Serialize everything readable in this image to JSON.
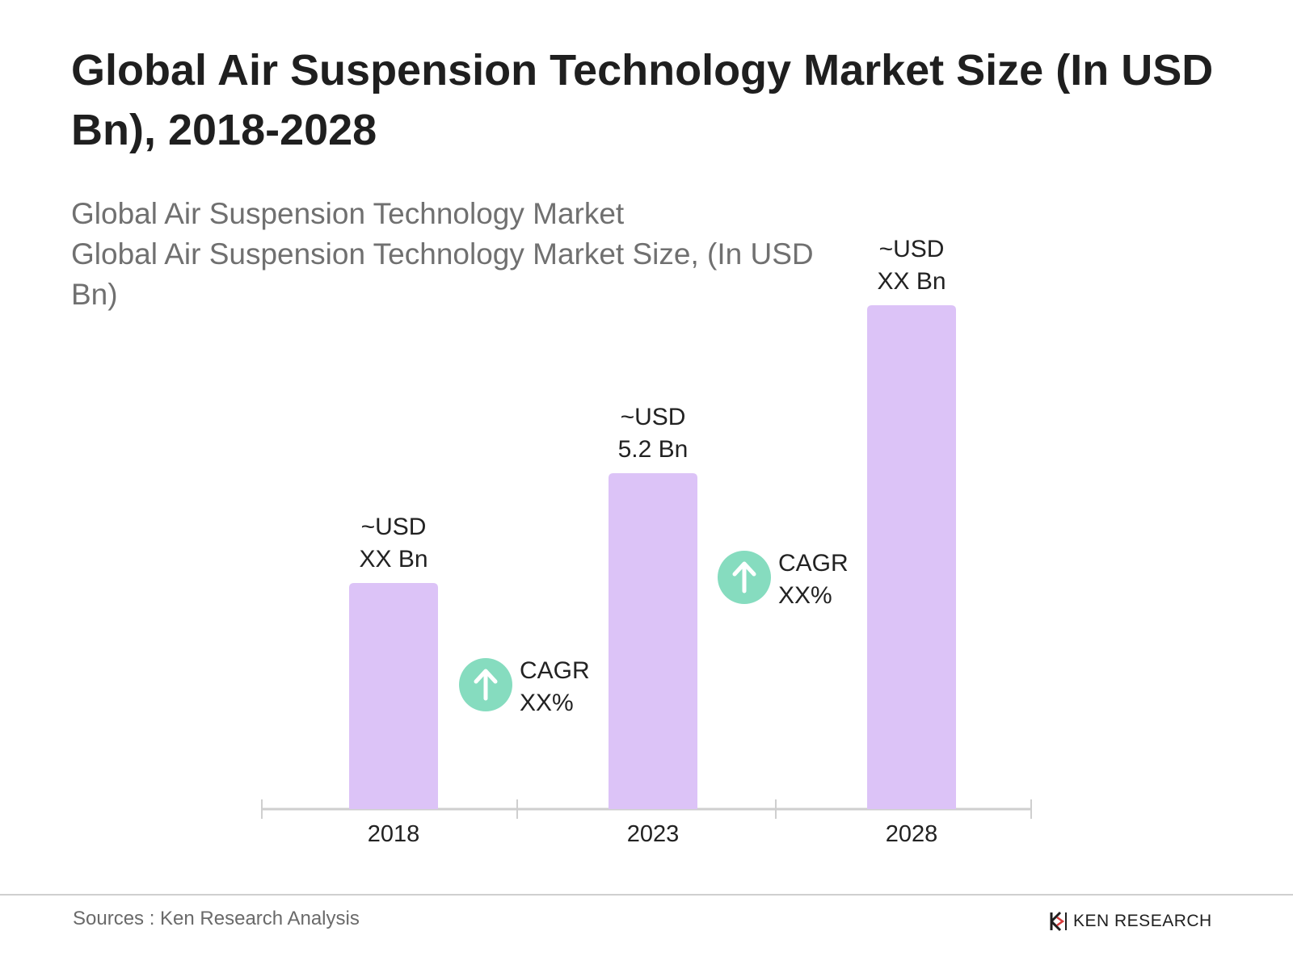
{
  "header": {
    "title": "Global Air Suspension Technology Market Size (In USD Bn), 2018-2028"
  },
  "subtitle": {
    "line1": "Global Air Suspension Technology Market",
    "line2": "Global Air Suspension Technology Market Size, (In USD Bn)"
  },
  "chart_data": {
    "type": "bar",
    "categories": [
      "2018",
      "2023",
      "2028"
    ],
    "values": [
      3.5,
      5.2,
      7.8
    ],
    "value_labels": [
      [
        "~USD",
        "XX Bn"
      ],
      [
        "~USD",
        "5.2 Bn"
      ],
      [
        "~USD",
        "XX Bn"
      ]
    ],
    "annotations": [
      {
        "between": [
          "2018",
          "2023"
        ],
        "lines": [
          "CAGR",
          "XX%"
        ],
        "icon": "arrow-up-icon"
      },
      {
        "between": [
          "2023",
          "2028"
        ],
        "lines": [
          "CAGR",
          "XX%"
        ],
        "icon": "arrow-up-icon"
      }
    ],
    "colors": {
      "bar": "#dcc3f7",
      "cagr_circle": "#86dcbf",
      "axis": "#cfcfcf",
      "text": "#222222"
    },
    "grid": false
  },
  "footer": {
    "source": "Sources : Ken Research Analysis",
    "brand": "KEN RESEARCH"
  }
}
